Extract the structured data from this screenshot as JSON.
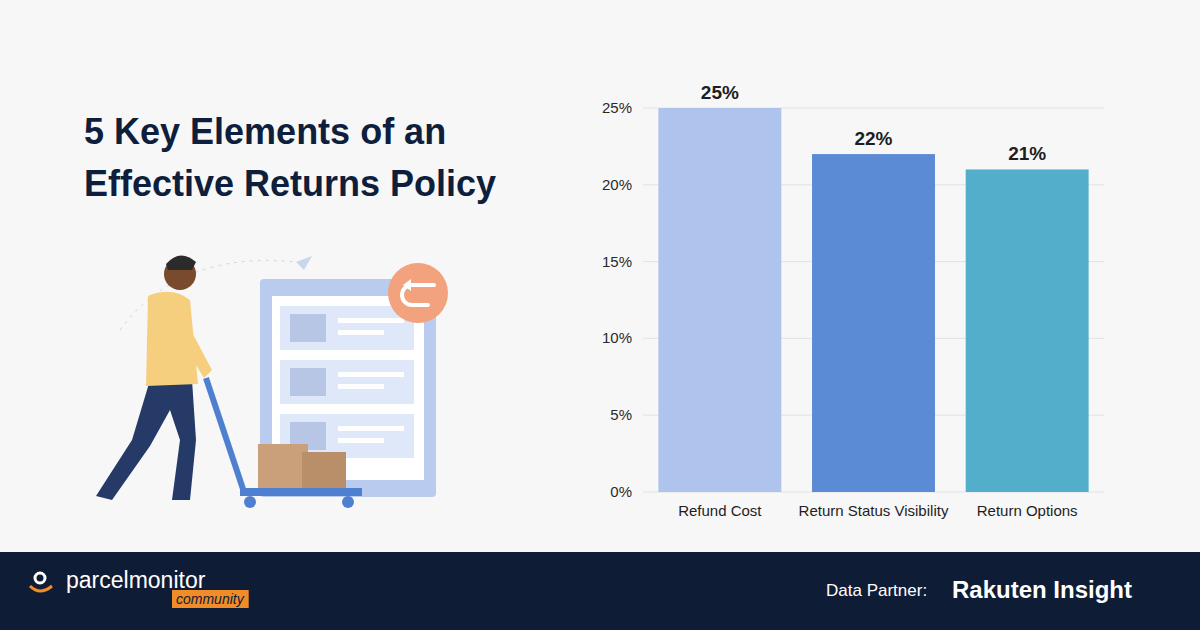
{
  "chart_data": {
    "type": "bar",
    "title": "5 Key Elements of an Effective Returns Policy",
    "categories": [
      "Refund Cost",
      "Return Status Visibility",
      "Return Options"
    ],
    "values": [
      25,
      22,
      21
    ],
    "value_labels": [
      "25%",
      "22%",
      "21%"
    ],
    "colors": [
      "#aec4ec",
      "#5b8bd4",
      "#52aecb"
    ],
    "ylim": [
      0,
      25
    ],
    "yticks": [
      {
        "value": 0,
        "label": "0%"
      },
      {
        "value": 5,
        "label": "5%"
      },
      {
        "value": 10,
        "label": "10%"
      },
      {
        "value": 15,
        "label": "15%"
      },
      {
        "value": 20,
        "label": "20%"
      },
      {
        "value": 25,
        "label": "25%"
      }
    ],
    "grid": true,
    "data_labels": true
  },
  "footer": {
    "logo": "parcelmonitor",
    "logo_tag": "community",
    "partner_label": "Data Partner:",
    "partner": "Rakuten Insight"
  }
}
